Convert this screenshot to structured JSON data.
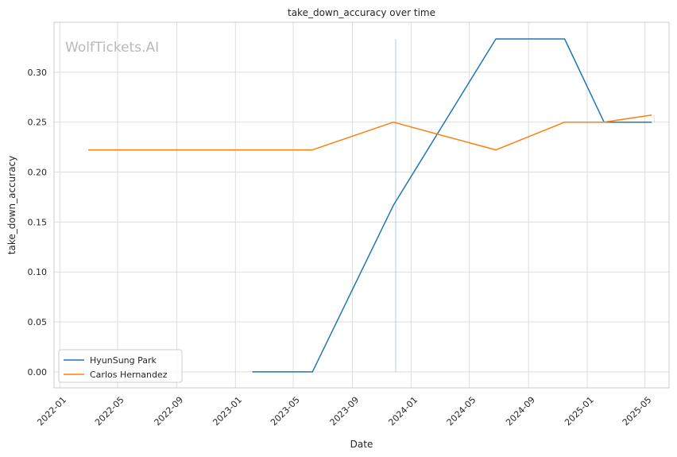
{
  "chart_data": {
    "type": "line",
    "title": "take_down_accuracy over time",
    "xlabel": "Date",
    "ylabel": "take_down_accuracy",
    "watermark": "WolfTickets.AI",
    "x_ticks": [
      "2022-01",
      "2022-05",
      "2022-09",
      "2023-01",
      "2023-05",
      "2023-09",
      "2024-01",
      "2024-05",
      "2024-09",
      "2025-01",
      "2025-05"
    ],
    "y_ticks": [
      "0.00",
      "0.05",
      "0.10",
      "0.15",
      "0.20",
      "0.25",
      "0.30"
    ],
    "xlim": [
      "2021-12-20",
      "2025-06-20"
    ],
    "ylim": [
      -0.016,
      0.35
    ],
    "grid": true,
    "legend_position": "lower-left",
    "series": [
      {
        "name": "HyunSung Park",
        "color": "#1f77b4",
        "points": [
          [
            "2023-02-05",
            0.0
          ],
          [
            "2023-06-10",
            0.0
          ],
          [
            "2023-11-25",
            0.1667
          ],
          [
            "2024-06-25",
            0.3333
          ],
          [
            "2024-11-15",
            0.3333
          ],
          [
            "2025-02-05",
            0.25
          ],
          [
            "2025-05-15",
            0.25
          ]
        ]
      },
      {
        "name": "Carlos Hernandez",
        "color": "#ff7f0e",
        "points": [
          [
            "2022-03-01",
            0.2222
          ],
          [
            "2023-06-10",
            0.2222
          ],
          [
            "2023-11-25",
            0.25
          ],
          [
            "2024-06-25",
            0.2222
          ],
          [
            "2024-11-15",
            0.25
          ],
          [
            "2025-02-05",
            0.25
          ],
          [
            "2025-05-15",
            0.2571
          ]
        ]
      }
    ],
    "markers": [
      {
        "color": "#1f77b4",
        "x": "2023-11-30",
        "y0": 0.0,
        "y1": 0.3333
      },
      {
        "color": "#ff7f0e",
        "x": "2025-05-20",
        "y0": 0.25,
        "y1": 0.2571
      }
    ]
  }
}
